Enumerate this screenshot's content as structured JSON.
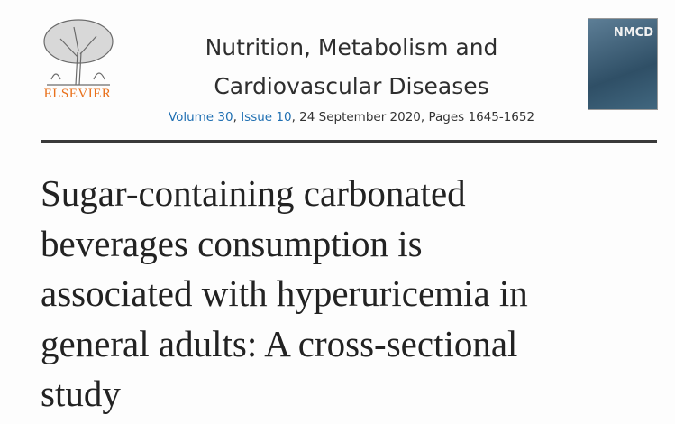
{
  "header": {
    "publisher": "ELSEVIER",
    "journal_lines": [
      "Nutrition, Metabolism and",
      "Cardiovascular Diseases"
    ],
    "citation": {
      "volume": "Volume 30",
      "separator": ", ",
      "issue": "Issue 10",
      "rest": ", 24 September 2020, Pages 1645-1652"
    },
    "cover_label": "NMCD"
  },
  "article": {
    "title_lines": [
      "Sugar-containing carbonated",
      "beverages consumption is",
      "associated with hyperuricemia in",
      "general adults: A cross-sectional",
      "study"
    ]
  }
}
